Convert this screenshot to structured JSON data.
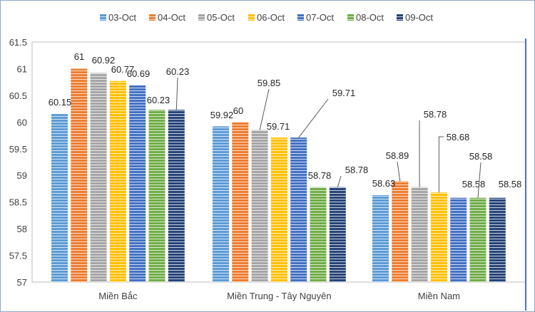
{
  "chart_data": {
    "type": "bar",
    "title": "",
    "xlabel": "",
    "ylabel": "",
    "ylim": [
      57,
      61.5
    ],
    "yticks": [
      "57",
      "57.5",
      "58",
      "58.5",
      "59",
      "59.5",
      "60",
      "60.5",
      "61",
      "61.5"
    ],
    "grid": false,
    "legend_position": "top",
    "categories": [
      "Miền Bắc",
      "Miền Trung - Tây Nguyên",
      "Miền Nam"
    ],
    "series": [
      {
        "name": "03-Oct",
        "color": "#5B9BD5",
        "values": [
          60.15,
          59.92,
          58.63
        ]
      },
      {
        "name": "04-Oct",
        "color": "#ED7D31",
        "values": [
          61,
          60,
          58.89
        ]
      },
      {
        "name": "05-Oct",
        "color": "#A5A5A5",
        "values": [
          60.92,
          59.85,
          58.78
        ]
      },
      {
        "name": "06-Oct",
        "color": "#FFC000",
        "values": [
          60.77,
          59.71,
          58.68
        ]
      },
      {
        "name": "07-Oct",
        "color": "#4472C4",
        "values": [
          60.69,
          59.71,
          58.58
        ]
      },
      {
        "name": "08-Oct",
        "color": "#70AD47",
        "values": [
          60.23,
          58.78,
          58.58
        ]
      },
      {
        "name": "09-Oct",
        "color": "#264478",
        "values": [
          60.23,
          58.78,
          58.58
        ]
      }
    ]
  }
}
